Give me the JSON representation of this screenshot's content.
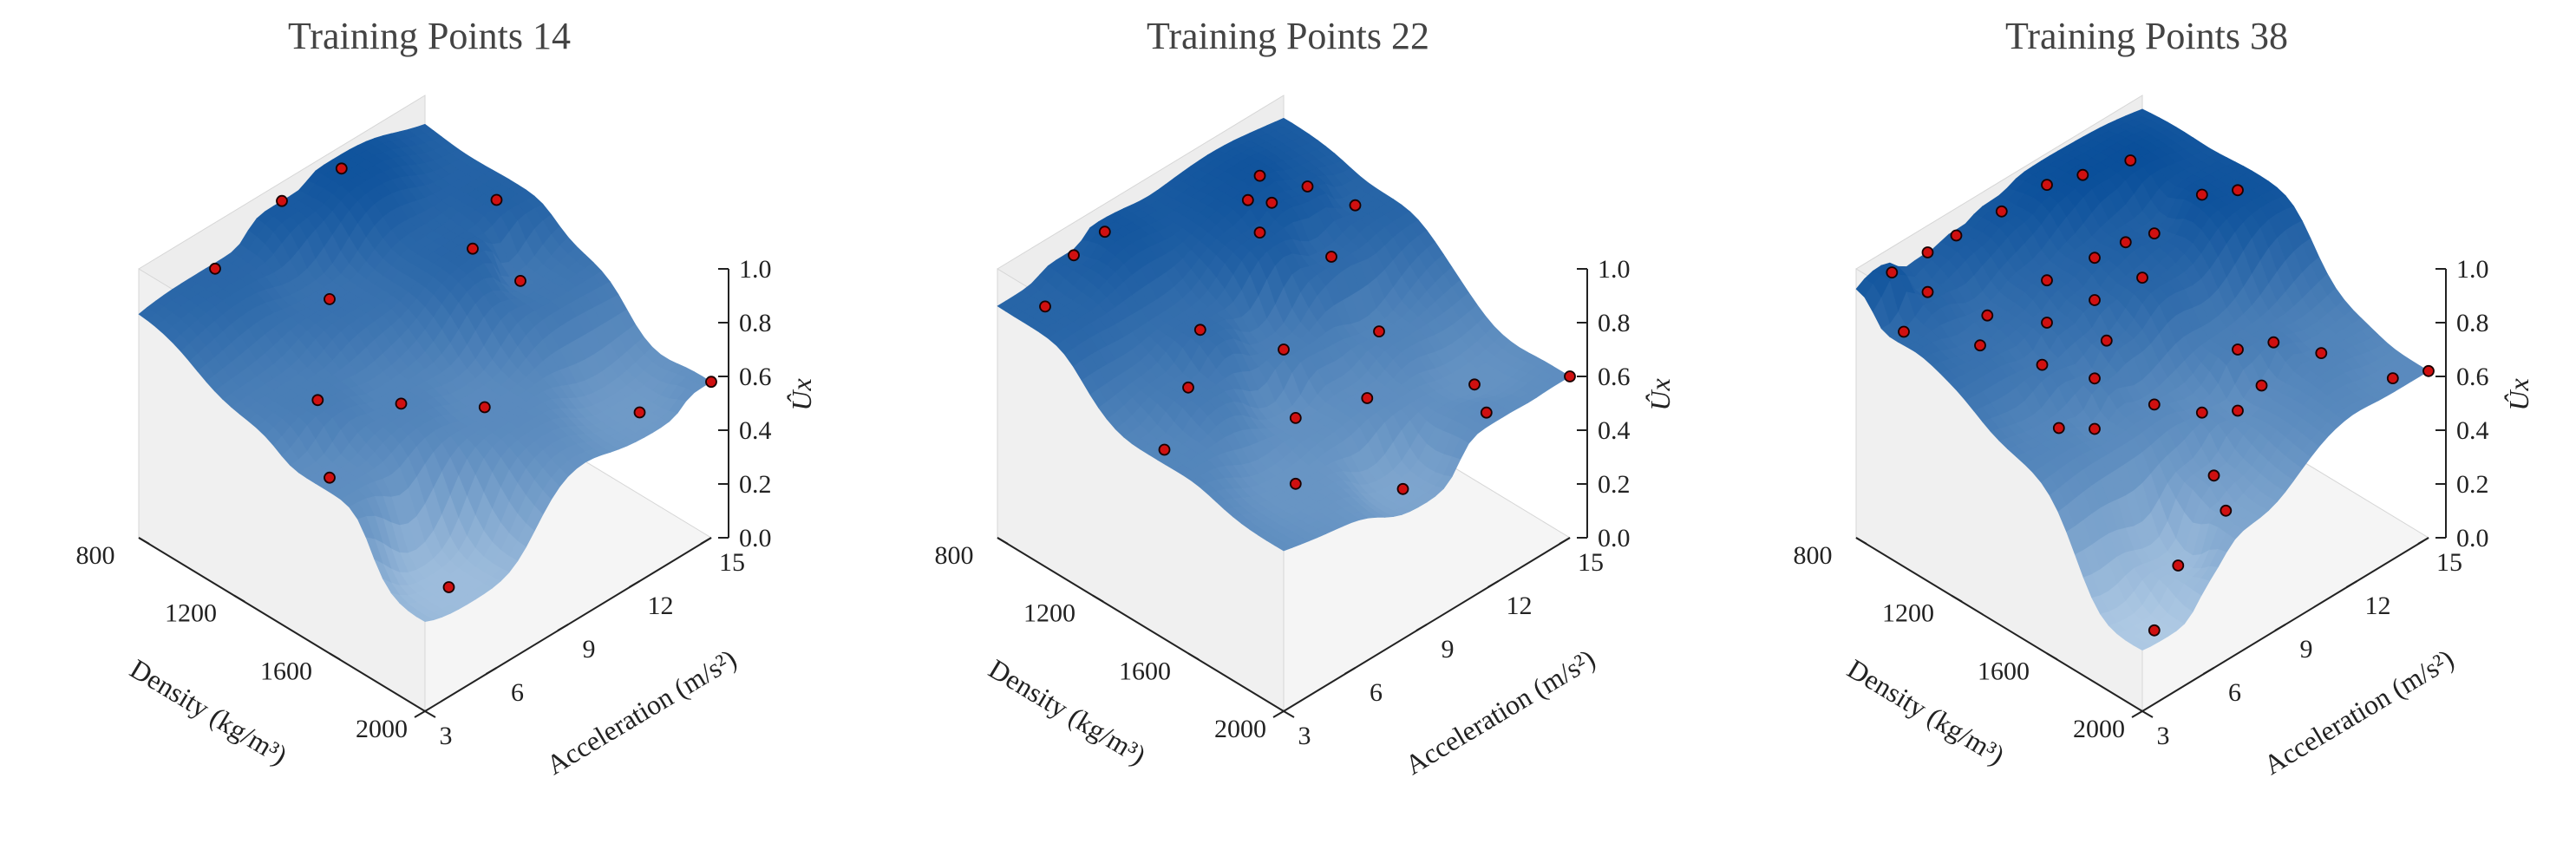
{
  "colors": {
    "pane_back": "#ededed",
    "pane_floor": "#f5f5f5",
    "pane_edge": "#d6d6d6",
    "surface_dark": "#0a4f9a",
    "surface_light": "#dcebf8",
    "point_fill": "#d01010",
    "point_edge": "#1a0000",
    "axis": "#222222"
  },
  "chart_data": [
    {
      "type": "surface3d",
      "title": "Training Points 14",
      "xlabel": "Density (kg/m³)",
      "ylabel": "Acceleration (m/s²)",
      "zlabel": "Ûx",
      "x_ticks": [
        800,
        1200,
        1600,
        2000
      ],
      "y_ticks": [
        3,
        6,
        9,
        12,
        15
      ],
      "z_ticks": [
        "0.0",
        "0.2",
        "0.4",
        "0.6",
        "0.8",
        "1.0"
      ],
      "xlim": [
        800,
        2000
      ],
      "ylim": [
        3,
        15
      ],
      "zlim": [
        0,
        1
      ],
      "points": [
        [
          800,
          9,
          0.93
        ],
        [
          850,
          11,
          0.97
        ],
        [
          820,
          6,
          0.85
        ],
        [
          1200,
          14,
          0.88
        ],
        [
          1100,
          8,
          0.78
        ],
        [
          1300,
          12,
          0.86
        ],
        [
          1350,
          5,
          0.7
        ],
        [
          1500,
          7,
          0.66
        ],
        [
          1400,
          13,
          0.74
        ],
        [
          1650,
          9,
          0.62
        ],
        [
          1550,
          3.5,
          0.6
        ],
        [
          1900,
          5,
          0.3
        ],
        [
          1900,
          13,
          0.52
        ],
        [
          2000,
          15,
          0.58
        ]
      ]
    },
    {
      "type": "surface3d",
      "title": "Training Points 22",
      "xlabel": "Density (kg/m³)",
      "ylabel": "Acceleration (m/s²)",
      "zlabel": "Ûx",
      "x_ticks": [
        800,
        1200,
        1600,
        2000
      ],
      "y_ticks": [
        3,
        6,
        9,
        12,
        15
      ],
      "z_ticks": [
        "0.0",
        "0.2",
        "0.4",
        "0.6",
        "0.8",
        "1.0"
      ],
      "xlim": [
        800,
        2000
      ],
      "ylim": [
        3,
        15
      ],
      "zlim": [
        0,
        1
      ],
      "points": [
        [
          820,
          6,
          0.9
        ],
        [
          850,
          7,
          0.95
        ],
        [
          900,
          4,
          0.86
        ],
        [
          1000,
          12,
          0.97
        ],
        [
          1050,
          11,
          0.96
        ],
        [
          1100,
          11.5,
          0.95
        ],
        [
          1100,
          13,
          0.93
        ],
        [
          1150,
          10.5,
          0.92
        ],
        [
          1200,
          14,
          0.86
        ],
        [
          1250,
          7,
          0.8
        ],
        [
          1300,
          12,
          0.83
        ],
        [
          1350,
          5.5,
          0.72
        ],
        [
          1400,
          9,
          0.7
        ],
        [
          1450,
          3.5,
          0.65
        ],
        [
          1500,
          12,
          0.66
        ],
        [
          1550,
          8,
          0.58
        ],
        [
          1650,
          10,
          0.6
        ],
        [
          1750,
          6,
          0.55
        ],
        [
          1800,
          13,
          0.57
        ],
        [
          1900,
          9,
          0.45
        ],
        [
          1950,
          12,
          0.6
        ],
        [
          2000,
          15,
          0.6
        ]
      ]
    },
    {
      "type": "surface3d",
      "title": "Training Points 38",
      "xlabel": "Density (kg/m³)",
      "ylabel": "Acceleration (m/s²)",
      "zlabel": "Ûx",
      "x_ticks": [
        800,
        1200,
        1600,
        2000
      ],
      "y_ticks": [
        3,
        6,
        9,
        12,
        15
      ],
      "z_ticks": [
        "0.0",
        "0.2",
        "0.4",
        "0.6",
        "0.8",
        "1.0"
      ],
      "xlim": [
        800,
        2000
      ],
      "ylim": [
        3,
        15
      ],
      "zlim": [
        0,
        1
      ],
      "points": [
        [
          800,
          6,
          0.9
        ],
        [
          820,
          7,
          0.92
        ],
        [
          860,
          8.5,
          0.95
        ],
        [
          900,
          10,
          0.99
        ],
        [
          950,
          11,
          1.0
        ],
        [
          1000,
          12.5,
          1.0
        ],
        [
          850,
          4,
          0.96
        ],
        [
          900,
          5,
          0.86
        ],
        [
          950,
          3.5,
          0.82
        ],
        [
          1050,
          6,
          0.8
        ],
        [
          1100,
          8,
          0.85
        ],
        [
          1150,
          9.5,
          0.88
        ],
        [
          1180,
          10.5,
          0.9
        ],
        [
          1200,
          11.5,
          0.89
        ],
        [
          1250,
          13,
          0.98
        ],
        [
          1300,
          14,
          0.97
        ],
        [
          1120,
          5,
          0.78
        ],
        [
          1200,
          7,
          0.8
        ],
        [
          1250,
          8.5,
          0.83
        ],
        [
          1300,
          10,
          0.86
        ],
        [
          1280,
          6,
          0.74
        ],
        [
          1350,
          8,
          0.76
        ],
        [
          1400,
          7,
          0.7
        ],
        [
          1450,
          5,
          0.65
        ],
        [
          1500,
          6,
          0.62
        ],
        [
          1550,
          8,
          0.63
        ],
        [
          1600,
          11,
          0.7
        ],
        [
          1650,
          12,
          0.7
        ],
        [
          1700,
          11,
          0.62
        ],
        [
          1750,
          13,
          0.66
        ],
        [
          1650,
          9,
          0.6
        ],
        [
          1700,
          10,
          0.58
        ],
        [
          1800,
          8,
          0.5
        ],
        [
          1850,
          6,
          0.3
        ],
        [
          1900,
          7.5,
          0.45
        ],
        [
          1950,
          14,
          0.62
        ],
        [
          2000,
          15,
          0.62
        ],
        [
          1950,
          4,
          0.22
        ]
      ]
    }
  ]
}
